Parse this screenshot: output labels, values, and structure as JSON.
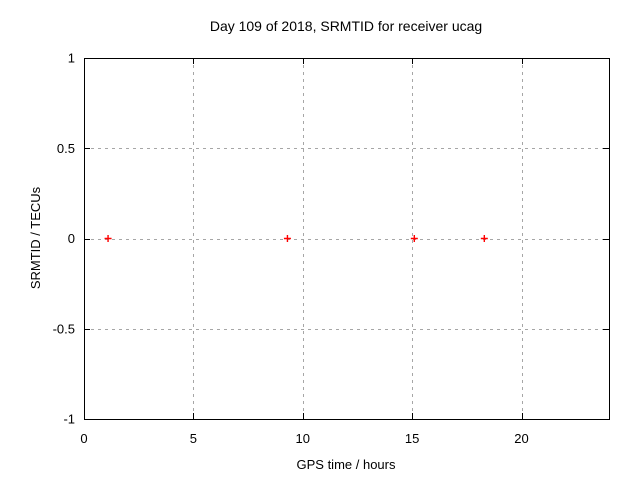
{
  "chart_data": {
    "type": "scatter",
    "title": "Day 109 of 2018, SRMTID for receiver ucag",
    "xlabel": "GPS time / hours",
    "ylabel": "SRMTID / TECUs",
    "xlim": [
      0,
      24
    ],
    "ylim": [
      -1,
      1
    ],
    "xticks": [
      0,
      5,
      10,
      15,
      20
    ],
    "yticks": [
      1,
      0.5,
      0,
      -0.5,
      -1
    ],
    "grid": true,
    "grid_x_values": [
      5,
      10,
      15,
      20
    ],
    "grid_y_values": [
      0.5,
      0,
      -0.5
    ],
    "legend": "none",
    "series": [
      {
        "name": "SRMTID",
        "marker": "plus",
        "color": "#ff0000",
        "points": [
          [
            1.1,
            0
          ],
          [
            9.3,
            0
          ],
          [
            15.1,
            0
          ],
          [
            18.3,
            0
          ]
        ]
      }
    ],
    "colors": {
      "background": "#ffffff",
      "border": "#000000",
      "grid": "#a6a6a6",
      "tick": "#000000",
      "text": "#000000"
    }
  }
}
